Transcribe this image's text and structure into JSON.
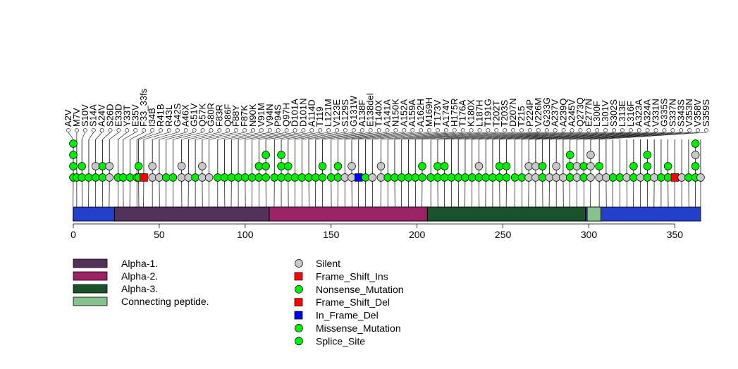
{
  "chart_data": {
    "type": "lollipop",
    "title": "",
    "xlabel": "",
    "ylabel": "",
    "xlim": [
      0,
      365
    ],
    "xticks": [
      0,
      50,
      100,
      150,
      200,
      250,
      300,
      350
    ],
    "domains": [
      {
        "name": "Alpha-1.",
        "start": 24,
        "end": 114,
        "color": "#52315a"
      },
      {
        "name": "Alpha-2.",
        "start": 114,
        "end": 206,
        "color": "#9c2265"
      },
      {
        "name": "Alpha-3.",
        "start": 206,
        "end": 298,
        "color": "#17522b"
      },
      {
        "name": "Connecting peptide.",
        "start": 299,
        "end": 307,
        "color": "#86c38c"
      }
    ],
    "legend_types": [
      {
        "name": "Silent",
        "shape": "circle",
        "color": "#c8c8c8"
      },
      {
        "name": "Frame_Shift_Ins",
        "shape": "square",
        "color": "#ff0000"
      },
      {
        "name": "Nonsense_Mutation",
        "shape": "circle",
        "color": "#00ee00"
      },
      {
        "name": "Frame_Shift_Del",
        "shape": "square",
        "color": "#ff0000"
      },
      {
        "name": "In_Frame_Del",
        "shape": "square",
        "color": "#0000ee"
      },
      {
        "name": "Missense_Mutation",
        "shape": "circle",
        "color": "#00ee00"
      },
      {
        "name": "Splice_Site",
        "shape": "circle",
        "color": "#00ee00"
      }
    ],
    "labels": [
      "A2V",
      "M7V",
      "S10V",
      "S14A",
      "A24V",
      "S26D",
      "E33D",
      "Y33T",
      "E35V",
      "F33_33fs",
      "I34B",
      "R41B",
      "R43L",
      "G42S",
      "A46X",
      "G51V",
      "Q57K",
      "G80R",
      "F83R",
      "Q86F",
      "F88Y",
      "F87K",
      "N90K",
      "V91M",
      "V94N",
      "P94S",
      "Q97H",
      "D101A",
      "D101N",
      "A114D",
      "T119",
      "L121M",
      "V123E",
      "S129S",
      "G131W",
      "A138F",
      "E138del",
      "T140X",
      "A141A",
      "N150K",
      "A152A",
      "A159A",
      "A162H",
      "M169H",
      "T173V",
      "A174V",
      "H175R",
      "T176A",
      "K180X",
      "L187H",
      "T191G",
      "T202T",
      "T203S",
      "D207N",
      "T215",
      "P224P",
      "V226M",
      "G233G",
      "A237V",
      "A239Q",
      "A245V",
      "Q273Q",
      "E277N",
      "L300F",
      "L301V",
      "S302S",
      "L313E",
      "L316F",
      "A323A",
      "A324A",
      "V331N",
      "G335S",
      "S337N",
      "S343S",
      "V353N",
      "V358V",
      "S359S"
    ],
    "mutations": [
      {
        "pos": 0,
        "types": [
          "Splice_Site",
          "Missense_Mutation",
          "Missense_Mutation",
          "Nonsense_Mutation"
        ]
      },
      {
        "pos": 2,
        "types": [
          "Missense_Mutation"
        ]
      },
      {
        "pos": 5,
        "types": [
          "Missense_Mutation",
          "Missense_Mutation"
        ]
      },
      {
        "pos": 9,
        "types": [
          "Missense_Mutation"
        ]
      },
      {
        "pos": 13,
        "types": [
          "Missense_Mutation",
          "Silent"
        ]
      },
      {
        "pos": 17,
        "types": [
          "Missense_Mutation",
          "Missense_Mutation"
        ]
      },
      {
        "pos": 21,
        "types": [
          "Silent",
          "Silent"
        ]
      },
      {
        "pos": 26,
        "types": [
          "Missense_Mutation"
        ]
      },
      {
        "pos": 29,
        "types": [
          "Missense_Mutation"
        ]
      },
      {
        "pos": 33,
        "types": [
          "Missense_Mutation"
        ]
      },
      {
        "pos": 37,
        "types": [
          "Missense_Mutation"
        ]
      },
      {
        "pos": 38,
        "types": [
          "Missense_Mutation",
          "Missense_Mutation"
        ]
      },
      {
        "pos": 41,
        "types": [
          "Frame_Shift_Del"
        ]
      },
      {
        "pos": 46,
        "types": [
          "Silent",
          "Silent"
        ]
      },
      {
        "pos": 50,
        "types": [
          "Silent"
        ]
      },
      {
        "pos": 54,
        "types": [
          "Missense_Mutation"
        ]
      },
      {
        "pos": 58,
        "types": [
          "Missense_Mutation"
        ]
      },
      {
        "pos": 63,
        "types": [
          "Silent",
          "Silent"
        ]
      },
      {
        "pos": 67,
        "types": [
          "Silent"
        ]
      },
      {
        "pos": 71,
        "types": [
          "Missense_Mutation"
        ]
      },
      {
        "pos": 75,
        "types": [
          "Silent",
          "Silent"
        ]
      },
      {
        "pos": 79,
        "types": [
          "Silent"
        ]
      },
      {
        "pos": 84,
        "types": [
          "Missense_Mutation"
        ]
      },
      {
        "pos": 88,
        "types": [
          "Missense_Mutation"
        ]
      },
      {
        "pos": 92,
        "types": [
          "Missense_Mutation"
        ]
      },
      {
        "pos": 96,
        "types": [
          "Missense_Mutation"
        ]
      },
      {
        "pos": 100,
        "types": [
          "Missense_Mutation"
        ]
      },
      {
        "pos": 104,
        "types": [
          "Missense_Mutation"
        ]
      },
      {
        "pos": 108,
        "types": [
          "Missense_Mutation",
          "Missense_Mutation"
        ]
      },
      {
        "pos": 112,
        "types": [
          "Missense_Mutation",
          "Missense_Mutation",
          "Missense_Mutation"
        ]
      },
      {
        "pos": 117,
        "types": [
          "Missense_Mutation"
        ]
      },
      {
        "pos": 121,
        "types": [
          "Missense_Mutation",
          "Missense_Mutation",
          "Missense_Mutation"
        ]
      },
      {
        "pos": 125,
        "types": [
          "Missense_Mutation",
          "Missense_Mutation"
        ]
      },
      {
        "pos": 129,
        "types": [
          "Missense_Mutation"
        ]
      },
      {
        "pos": 133,
        "types": [
          "Missense_Mutation"
        ]
      },
      {
        "pos": 137,
        "types": [
          "Missense_Mutation"
        ]
      },
      {
        "pos": 141,
        "types": [
          "Missense_Mutation"
        ]
      },
      {
        "pos": 145,
        "types": [
          "Missense_Mutation",
          "Missense_Mutation"
        ]
      },
      {
        "pos": 150,
        "types": [
          "Missense_Mutation"
        ]
      },
      {
        "pos": 154,
        "types": [
          "Missense_Mutation",
          "Missense_Mutation"
        ]
      },
      {
        "pos": 158,
        "types": [
          "Silent"
        ]
      },
      {
        "pos": 162,
        "types": [
          "Silent",
          "Silent"
        ]
      },
      {
        "pos": 166,
        "types": [
          "In_Frame_Del"
        ]
      },
      {
        "pos": 170,
        "types": [
          "Missense_Mutation"
        ]
      },
      {
        "pos": 174,
        "types": [
          "Silent"
        ]
      },
      {
        "pos": 179,
        "types": [
          "Silent",
          "Silent"
        ]
      },
      {
        "pos": 183,
        "types": [
          "Missense_Mutation"
        ]
      },
      {
        "pos": 187,
        "types": [
          "Missense_Mutation"
        ]
      },
      {
        "pos": 191,
        "types": [
          "Missense_Mutation"
        ]
      },
      {
        "pos": 195,
        "types": [
          "Missense_Mutation"
        ]
      },
      {
        "pos": 199,
        "types": [
          "Missense_Mutation"
        ]
      },
      {
        "pos": 203,
        "types": [
          "Missense_Mutation",
          "Missense_Mutation"
        ]
      },
      {
        "pos": 208,
        "types": [
          "Missense_Mutation"
        ]
      },
      {
        "pos": 212,
        "types": [
          "Missense_Mutation",
          "Missense_Mutation"
        ]
      },
      {
        "pos": 216,
        "types": [
          "Missense_Mutation",
          "Missense_Mutation"
        ]
      },
      {
        "pos": 220,
        "types": [
          "Missense_Mutation"
        ]
      },
      {
        "pos": 224,
        "types": [
          "Missense_Mutation"
        ]
      },
      {
        "pos": 228,
        "types": [
          "Missense_Mutation"
        ]
      },
      {
        "pos": 232,
        "types": [
          "Missense_Mutation"
        ]
      },
      {
        "pos": 236,
        "types": [
          "Missense_Mutation",
          "Silent"
        ]
      },
      {
        "pos": 240,
        "types": [
          "Missense_Mutation"
        ]
      },
      {
        "pos": 244,
        "types": [
          "Missense_Mutation"
        ]
      },
      {
        "pos": 248,
        "types": [
          "Missense_Mutation",
          "Missense_Mutation"
        ]
      },
      {
        "pos": 252,
        "types": [
          "Missense_Mutation",
          "Missense_Mutation"
        ]
      },
      {
        "pos": 257,
        "types": [
          "Missense_Mutation"
        ]
      },
      {
        "pos": 261,
        "types": [
          "Missense_Mutation"
        ]
      },
      {
        "pos": 265,
        "types": [
          "Silent",
          "Silent"
        ]
      },
      {
        "pos": 269,
        "types": [
          "Silent",
          "Silent"
        ]
      },
      {
        "pos": 273,
        "types": [
          "Missense_Mutation",
          "Missense_Mutation"
        ]
      },
      {
        "pos": 277,
        "types": [
          "Silent"
        ]
      },
      {
        "pos": 281,
        "types": [
          "Silent",
          "Silent"
        ]
      },
      {
        "pos": 285,
        "types": [
          "Silent"
        ]
      },
      {
        "pos": 289,
        "types": [
          "Missense_Mutation",
          "Missense_Mutation",
          "Missense_Mutation"
        ]
      },
      {
        "pos": 293,
        "types": [
          "Silent",
          "Silent"
        ]
      },
      {
        "pos": 297,
        "types": [
          "Missense_Mutation",
          "Missense_Mutation"
        ]
      },
      {
        "pos": 301,
        "types": [
          "Silent",
          "Silent",
          "Silent"
        ]
      },
      {
        "pos": 306,
        "types": [
          "Silent",
          "Missense_Mutation"
        ]
      },
      {
        "pos": 310,
        "types": [
          "Silent"
        ]
      },
      {
        "pos": 314,
        "types": [
          "Missense_Mutation"
        ]
      },
      {
        "pos": 318,
        "types": [
          "Missense_Mutation"
        ]
      },
      {
        "pos": 322,
        "types": [
          "Silent"
        ]
      },
      {
        "pos": 326,
        "types": [
          "Missense_Mutation",
          "Missense_Mutation"
        ]
      },
      {
        "pos": 330,
        "types": [
          "Silent"
        ]
      },
      {
        "pos": 334,
        "types": [
          "Missense_Mutation",
          "Missense_Mutation",
          "Missense_Mutation"
        ]
      },
      {
        "pos": 338,
        "types": [
          "Silent"
        ]
      },
      {
        "pos": 342,
        "types": [
          "Missense_Mutation"
        ]
      },
      {
        "pos": 346,
        "types": [
          "Missense_Mutation",
          "Missense_Mutation"
        ]
      },
      {
        "pos": 350,
        "types": [
          "Frame_Shift_Ins"
        ]
      },
      {
        "pos": 354,
        "types": [
          "Silent"
        ]
      },
      {
        "pos": 358,
        "types": [
          "Missense_Mutation"
        ]
      },
      {
        "pos": 362,
        "types": [
          "Missense_Mutation",
          "Missense_Mutation",
          "Silent",
          "Missense_Mutation"
        ]
      },
      {
        "pos": 365,
        "types": [
          "Silent"
        ]
      }
    ],
    "domain_boundaries": [
      24,
      114,
      206,
      298,
      299,
      307
    ]
  },
  "colors": {
    "protein_bar": "#2240cc",
    "stem": "#000000"
  }
}
